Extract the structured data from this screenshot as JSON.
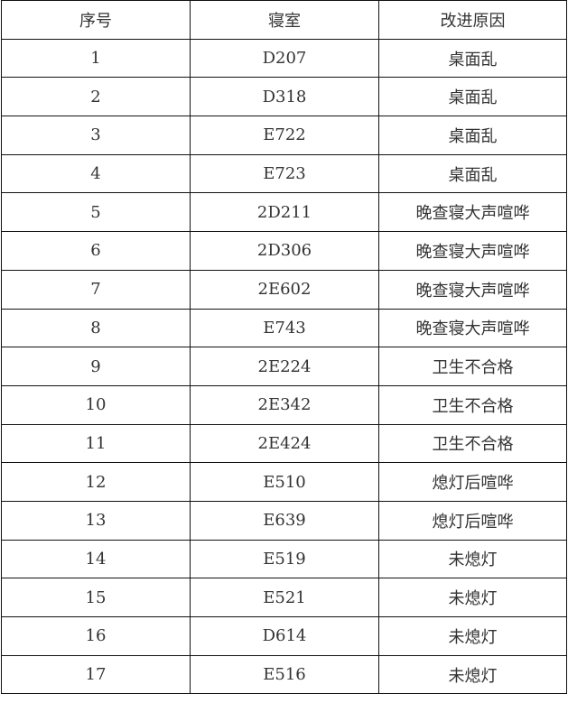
{
  "table": {
    "headers": [
      "序号",
      "寝室",
      "改进原因"
    ],
    "rows": [
      [
        "1",
        "D207",
        "桌面乱"
      ],
      [
        "2",
        "D318",
        "桌面乱"
      ],
      [
        "3",
        "E722",
        "桌面乱"
      ],
      [
        "4",
        "E723",
        "桌面乱"
      ],
      [
        "5",
        "2D211",
        "晚查寝大声喧哗"
      ],
      [
        "6",
        "2D306",
        "晚查寝大声喧哗"
      ],
      [
        "7",
        "2E602",
        "晚查寝大声喧哗"
      ],
      [
        "8",
        "E743",
        "晚查寝大声喧哗"
      ],
      [
        "9",
        "2E224",
        "卫生不合格"
      ],
      [
        "10",
        "2E342",
        "卫生不合格"
      ],
      [
        "11",
        "2E424",
        "卫生不合格"
      ],
      [
        "12",
        "E510",
        "熄灯后喧哗"
      ],
      [
        "13",
        "E639",
        "熄灯后喧哗"
      ],
      [
        "14",
        "E519",
        "未熄灯"
      ],
      [
        "15",
        "E521",
        "未熄灯"
      ],
      [
        "16",
        "D614",
        "未熄灯"
      ],
      [
        "17",
        "E516",
        "未熄灯"
      ]
    ]
  }
}
